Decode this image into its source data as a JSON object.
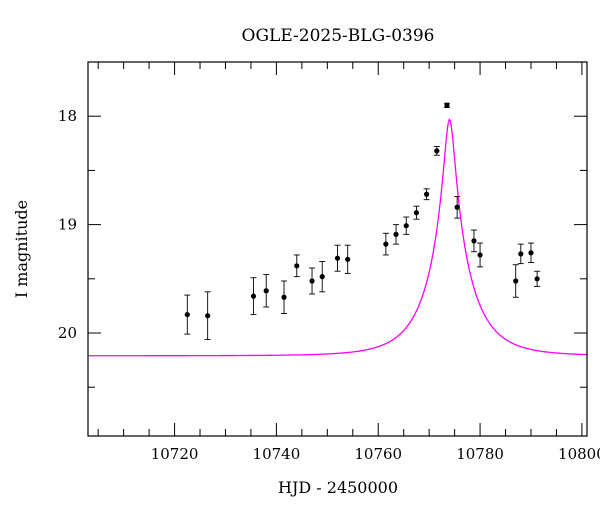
{
  "chart_data": {
    "type": "scatter",
    "title": "OGLE-2025-BLG-0396",
    "xlabel": "HJD - 2450000",
    "ylabel": "I magnitude",
    "xlim": [
      10703,
      10801
    ],
    "ylim": [
      20.95,
      17.5
    ],
    "y_inverted": true,
    "grid": false,
    "x_ticks": [
      10720,
      10740,
      10760,
      10780,
      10800
    ],
    "x_tick_labels": [
      "10720",
      "10740",
      "10760",
      "10780",
      "10800"
    ],
    "y_ticks": [
      18,
      19,
      20
    ],
    "y_tick_labels": [
      "18",
      "19",
      "20"
    ],
    "series": [
      {
        "kind": "points_with_errorbars",
        "color": "#000000",
        "x": [
          10722.5,
          10726.5,
          10735.5,
          10738.0,
          10741.5,
          10744.0,
          10747.0,
          10749.0,
          10752.0,
          10754.0,
          10761.5,
          10763.5,
          10765.5,
          10767.5,
          10769.5,
          10771.5,
          10773.5,
          10775.5,
          10778.8,
          10780.0,
          10787.0,
          10788.0,
          10790.0,
          10791.2
        ],
        "y": [
          19.83,
          19.84,
          19.66,
          19.61,
          19.67,
          19.38,
          19.52,
          19.48,
          19.31,
          19.32,
          19.18,
          19.09,
          19.01,
          18.89,
          18.72,
          18.32,
          17.9,
          18.84,
          19.15,
          19.28,
          19.52,
          19.27,
          19.26,
          19.5
        ],
        "err": [
          0.18,
          0.22,
          0.17,
          0.15,
          0.15,
          0.1,
          0.12,
          0.14,
          0.12,
          0.13,
          0.1,
          0.09,
          0.08,
          0.06,
          0.05,
          0.04,
          0.02,
          0.1,
          0.1,
          0.11,
          0.15,
          0.09,
          0.09,
          0.07
        ]
      },
      {
        "kind": "model_curve",
        "color": "#ff00ff",
        "peak_x": 10774.0,
        "peak_mag": 18.03,
        "base_mag": 20.21,
        "tE": 8.0,
        "u0": 0.125
      }
    ]
  }
}
